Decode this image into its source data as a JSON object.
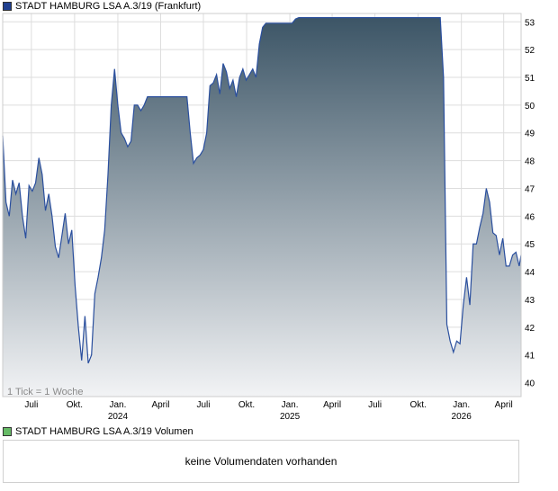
{
  "legend": {
    "price_label": "STADT HAMBURG LSA A.3/19 (Frankfurt)",
    "price_color": "#1f3f8f",
    "volume_label": "STADT HAMBURG LSA A.3/19 Volumen",
    "volume_color": "#66bb66"
  },
  "annotation": "1 Tick = 1 Woche",
  "volume_message": "keine Volumendaten vorhanden",
  "colors": {
    "line": "#2a4f9e",
    "area_top": "#3c5566",
    "area_bottom": "#f2f3f5",
    "grid": "#dddddd"
  },
  "chart_data": {
    "type": "area",
    "title": "STADT HAMBURG LSA A.3/19 (Frankfurt)",
    "xlabel": "",
    "ylabel": "",
    "y_ticks": [
      40,
      41,
      42,
      43,
      44,
      45,
      46,
      47,
      48,
      49,
      50,
      51,
      52,
      53
    ],
    "ylim": [
      39.5,
      53.3
    ],
    "xlim": [
      "2023-05-01",
      "2026-05-08"
    ],
    "x_ticks": [
      {
        "date": "2023-07-01",
        "label": "Juli",
        "sub": ""
      },
      {
        "date": "2023-10-01",
        "label": "Okt.",
        "sub": ""
      },
      {
        "date": "2024-01-01",
        "label": "Jan.",
        "sub": "2024"
      },
      {
        "date": "2024-04-01",
        "label": "April",
        "sub": ""
      },
      {
        "date": "2024-07-01",
        "label": "Juli",
        "sub": ""
      },
      {
        "date": "2024-10-01",
        "label": "Okt.",
        "sub": ""
      },
      {
        "date": "2025-01-01",
        "label": "Jan.",
        "sub": "2025"
      },
      {
        "date": "2025-04-01",
        "label": "April",
        "sub": ""
      },
      {
        "date": "2025-07-01",
        "label": "Juli",
        "sub": ""
      },
      {
        "date": "2025-10-01",
        "label": "Okt.",
        "sub": ""
      },
      {
        "date": "2026-01-01",
        "label": "Jan.",
        "sub": "2026"
      },
      {
        "date": "2026-04-01",
        "label": "April",
        "sub": ""
      }
    ],
    "grid": true,
    "y_axis_position": "right",
    "series": [
      {
        "name": "STADT HAMBURG LSA A.3/19 (Frankfurt)",
        "points": [
          [
            "2023-05-01",
            48.9
          ],
          [
            "2023-05-08",
            46.5
          ],
          [
            "2023-05-15",
            46.0
          ],
          [
            "2023-05-22",
            47.3
          ],
          [
            "2023-05-29",
            46.8
          ],
          [
            "2023-06-05",
            47.2
          ],
          [
            "2023-06-12",
            46.0
          ],
          [
            "2023-06-19",
            45.2
          ],
          [
            "2023-06-26",
            47.1
          ],
          [
            "2023-07-03",
            46.9
          ],
          [
            "2023-07-10",
            47.2
          ],
          [
            "2023-07-17",
            48.1
          ],
          [
            "2023-07-24",
            47.5
          ],
          [
            "2023-07-31",
            46.2
          ],
          [
            "2023-08-07",
            46.8
          ],
          [
            "2023-08-14",
            46.0
          ],
          [
            "2023-08-21",
            44.9
          ],
          [
            "2023-08-28",
            44.5
          ],
          [
            "2023-09-04",
            45.3
          ],
          [
            "2023-09-11",
            46.1
          ],
          [
            "2023-09-18",
            45.0
          ],
          [
            "2023-09-25",
            45.5
          ],
          [
            "2023-10-02",
            43.5
          ],
          [
            "2023-10-09",
            42.0
          ],
          [
            "2023-10-16",
            40.8
          ],
          [
            "2023-10-23",
            42.4
          ],
          [
            "2023-10-30",
            40.7
          ],
          [
            "2023-11-06",
            41.0
          ],
          [
            "2023-11-13",
            43.2
          ],
          [
            "2023-11-20",
            43.8
          ],
          [
            "2023-11-27",
            44.5
          ],
          [
            "2023-12-04",
            45.5
          ],
          [
            "2023-12-11",
            47.5
          ],
          [
            "2023-12-18",
            50.0
          ],
          [
            "2023-12-25",
            51.3
          ],
          [
            "2024-01-01",
            50.0
          ],
          [
            "2024-01-08",
            49.0
          ],
          [
            "2024-01-15",
            48.8
          ],
          [
            "2024-01-22",
            48.5
          ],
          [
            "2024-01-29",
            48.7
          ],
          [
            "2024-02-05",
            50.0
          ],
          [
            "2024-02-12",
            50.0
          ],
          [
            "2024-02-19",
            49.8
          ],
          [
            "2024-02-26",
            50.0
          ],
          [
            "2024-03-04",
            50.3
          ],
          [
            "2024-03-11",
            50.3
          ],
          [
            "2024-03-18",
            50.3
          ],
          [
            "2024-03-25",
            50.3
          ],
          [
            "2024-04-01",
            50.3
          ],
          [
            "2024-04-08",
            50.3
          ],
          [
            "2024-04-15",
            50.3
          ],
          [
            "2024-04-22",
            50.3
          ],
          [
            "2024-04-29",
            50.3
          ],
          [
            "2024-05-06",
            50.3
          ],
          [
            "2024-05-13",
            50.3
          ],
          [
            "2024-05-20",
            50.3
          ],
          [
            "2024-05-27",
            50.3
          ],
          [
            "2024-06-03",
            49.0
          ],
          [
            "2024-06-10",
            47.9
          ],
          [
            "2024-06-17",
            48.1
          ],
          [
            "2024-06-24",
            48.2
          ],
          [
            "2024-07-01",
            48.4
          ],
          [
            "2024-07-08",
            49.0
          ],
          [
            "2024-07-15",
            50.7
          ],
          [
            "2024-07-22",
            50.8
          ],
          [
            "2024-07-29",
            51.1
          ],
          [
            "2024-08-05",
            50.4
          ],
          [
            "2024-08-12",
            51.5
          ],
          [
            "2024-08-19",
            51.2
          ],
          [
            "2024-08-26",
            50.6
          ],
          [
            "2024-09-02",
            50.9
          ],
          [
            "2024-09-09",
            50.3
          ],
          [
            "2024-09-16",
            51.0
          ],
          [
            "2024-09-23",
            51.3
          ],
          [
            "2024-09-30",
            50.9
          ],
          [
            "2024-10-07",
            51.1
          ],
          [
            "2024-10-14",
            51.3
          ],
          [
            "2024-10-21",
            51.0
          ],
          [
            "2024-10-28",
            52.2
          ],
          [
            "2024-11-04",
            52.8
          ],
          [
            "2024-11-11",
            52.95
          ],
          [
            "2024-11-18",
            52.95
          ],
          [
            "2024-11-25",
            52.95
          ],
          [
            "2024-12-02",
            52.95
          ],
          [
            "2024-12-09",
            52.95
          ],
          [
            "2024-12-16",
            52.95
          ],
          [
            "2024-12-23",
            52.95
          ],
          [
            "2024-12-30",
            52.95
          ],
          [
            "2025-01-06",
            52.95
          ],
          [
            "2025-01-13",
            53.1
          ],
          [
            "2025-01-20",
            53.15
          ],
          [
            "2025-02-03",
            53.15
          ],
          [
            "2025-03-03",
            53.15
          ],
          [
            "2025-04-07",
            53.15
          ],
          [
            "2025-05-05",
            53.15
          ],
          [
            "2025-06-02",
            53.15
          ],
          [
            "2025-07-07",
            53.15
          ],
          [
            "2025-08-04",
            53.15
          ],
          [
            "2025-09-01",
            53.15
          ],
          [
            "2025-10-06",
            53.15
          ],
          [
            "2025-11-03",
            53.15
          ],
          [
            "2025-11-17",
            53.15
          ],
          [
            "2025-11-24",
            51.0
          ],
          [
            "2025-12-01",
            42.1
          ],
          [
            "2025-12-08",
            41.5
          ],
          [
            "2025-12-15",
            41.1
          ],
          [
            "2025-12-22",
            41.5
          ],
          [
            "2025-12-29",
            41.4
          ],
          [
            "2026-01-05",
            42.8
          ],
          [
            "2026-01-12",
            43.8
          ],
          [
            "2026-01-19",
            42.8
          ],
          [
            "2026-01-26",
            45.0
          ],
          [
            "2026-02-02",
            45.0
          ],
          [
            "2026-02-09",
            45.6
          ],
          [
            "2026-02-16",
            46.1
          ],
          [
            "2026-02-23",
            47.0
          ],
          [
            "2026-03-02",
            46.5
          ],
          [
            "2026-03-09",
            45.4
          ],
          [
            "2026-03-16",
            45.3
          ],
          [
            "2026-03-23",
            44.6
          ],
          [
            "2026-03-30",
            45.2
          ],
          [
            "2026-04-06",
            44.2
          ],
          [
            "2026-04-13",
            44.2
          ],
          [
            "2026-04-20",
            44.6
          ],
          [
            "2026-04-27",
            44.7
          ],
          [
            "2026-05-04",
            44.2
          ],
          [
            "2026-05-08",
            44.6
          ]
        ]
      }
    ]
  }
}
